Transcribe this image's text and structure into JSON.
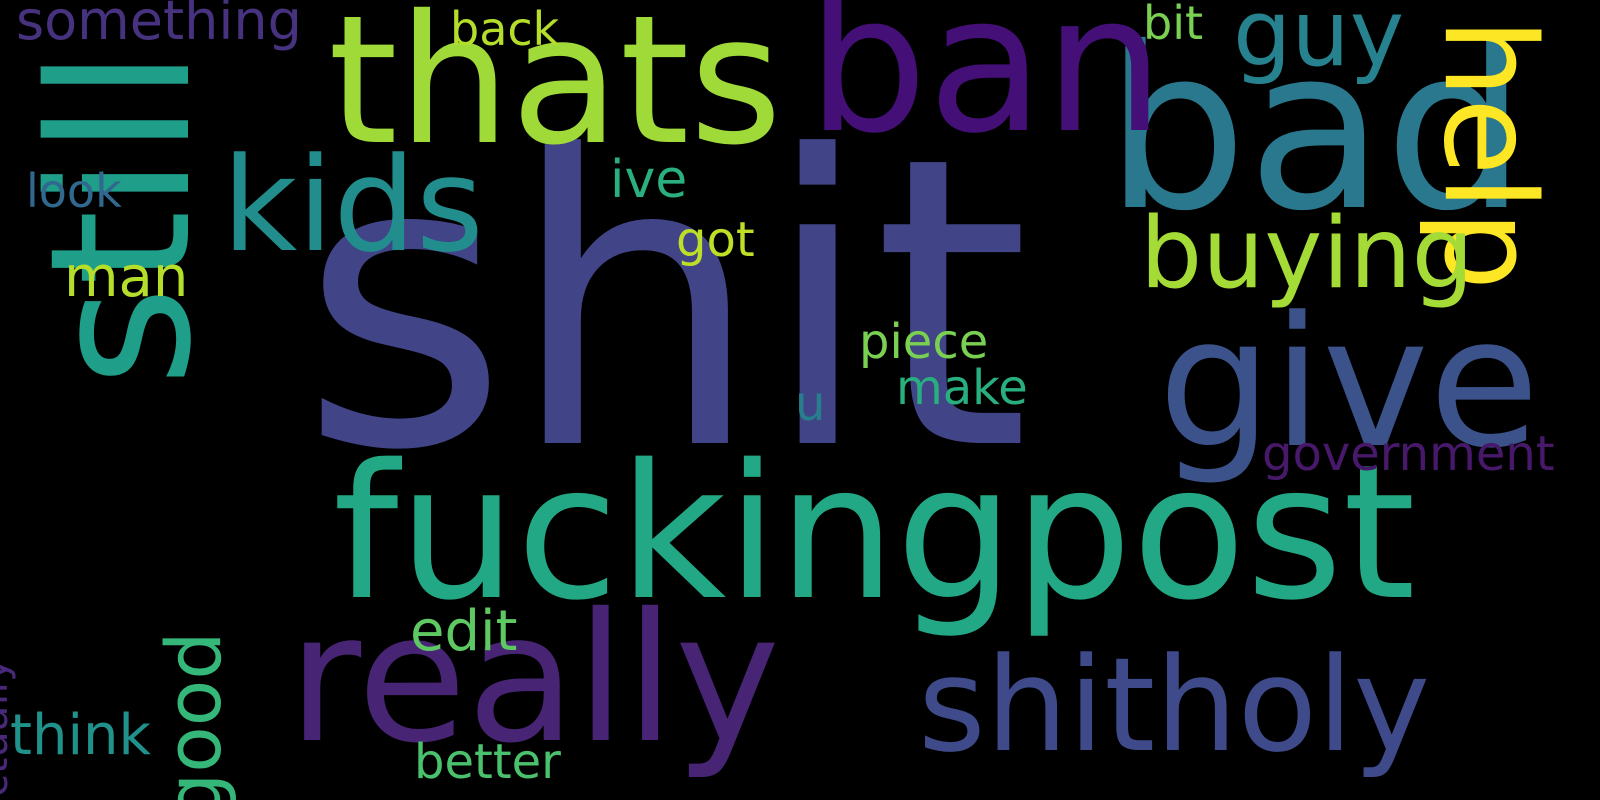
{
  "background": "#000000",
  "colormap": "viridis",
  "words": [
    {
      "id": "shit",
      "text": "shit",
      "color": "#414487"
    },
    {
      "id": "fuckingpost",
      "text": "fuckingpost",
      "color": "#22a884"
    },
    {
      "id": "still",
      "text": "still",
      "color": "#1f9e89"
    },
    {
      "id": "bad",
      "text": "bad",
      "color": "#2a788e"
    },
    {
      "id": "thats",
      "text": "thats",
      "color": "#a0da39"
    },
    {
      "id": "ban",
      "text": "ban",
      "color": "#440f76"
    },
    {
      "id": "really",
      "text": "really",
      "color": "#482475"
    },
    {
      "id": "give",
      "text": "give",
      "color": "#3b528b"
    },
    {
      "id": "shitholy",
      "text": "shitholy",
      "color": "#3e4a89"
    },
    {
      "id": "kids",
      "text": "kids",
      "color": "#218e8d"
    },
    {
      "id": "help",
      "text": "help",
      "color": "#fde725"
    },
    {
      "id": "buying",
      "text": "buying",
      "color": "#a5db36"
    },
    {
      "id": "guy",
      "text": "guy",
      "color": "#26828e"
    },
    {
      "id": "good",
      "text": "good",
      "color": "#35b779"
    },
    {
      "id": "something",
      "text": "something",
      "color": "#46327e"
    },
    {
      "id": "back",
      "text": "back",
      "color": "#b5de2b"
    },
    {
      "id": "bit",
      "text": "bit",
      "color": "#7ad151"
    },
    {
      "id": "look",
      "text": "look",
      "color": "#31688e"
    },
    {
      "id": "ive",
      "text": "ive",
      "color": "#2ab07f"
    },
    {
      "id": "got",
      "text": "got",
      "color": "#bddf26"
    },
    {
      "id": "man",
      "text": "man",
      "color": "#b5de2b"
    },
    {
      "id": "piece",
      "text": "piece",
      "color": "#7ad151"
    },
    {
      "id": "make",
      "text": "make",
      "color": "#29af7f"
    },
    {
      "id": "u",
      "text": "u",
      "color": "#277f8e"
    },
    {
      "id": "government",
      "text": "government",
      "color": "#48186a"
    },
    {
      "id": "actually",
      "text": "actually",
      "color": "#482878"
    },
    {
      "id": "edit",
      "text": "edit",
      "color": "#5ec962"
    },
    {
      "id": "think",
      "text": "think",
      "color": "#21918c"
    },
    {
      "id": "better",
      "text": "better",
      "color": "#4ac16d"
    }
  ]
}
